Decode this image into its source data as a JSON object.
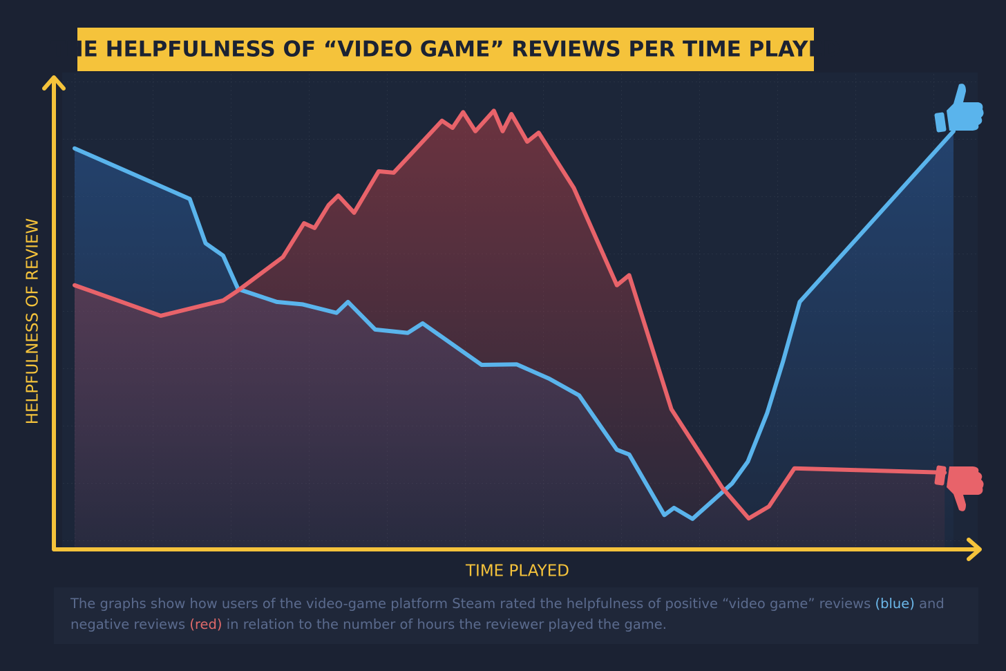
{
  "chart_data": {
    "type": "line",
    "title": "THE HELPFULNESS OF “VIDEO GAME” REVIEWS PER TIME PLAYED",
    "x_label": "TIME PLAYED",
    "y_label": "HELPFULNESS OF REVIEW",
    "xlim": [
      0,
      100
    ],
    "ylim": [
      0,
      100
    ],
    "series": [
      {
        "color": "#5ab4ec",
        "x": [
          0,
          13.1,
          14.9,
          16.9,
          18.6,
          23.0,
          25.9,
          29.8,
          31.1,
          34.2,
          37.9,
          39.6,
          46.3,
          50.3,
          54.0,
          57.4,
          61.7,
          63.1,
          67.1,
          68.2,
          70.3,
          74.8,
          76.6,
          78.8,
          80.6,
          82.5,
          100
        ],
        "values": [
          84.1,
          73.5,
          64.2,
          61.6,
          54.6,
          51.9,
          51.4,
          49.6,
          51.9,
          46.1,
          45.4,
          47.4,
          38.7,
          38.8,
          35.8,
          32.3,
          20.9,
          19.9,
          7.2,
          8.7,
          6.4,
          13.8,
          18.4,
          28.6,
          39.4,
          51.9,
          87.7
        ]
      },
      {
        "color": "#e8636a",
        "x": [
          0,
          9.8,
          16.9,
          18.6,
          23.7,
          26.1,
          27.3,
          28.9,
          30.0,
          31.8,
          34.6,
          36.3,
          41.8,
          43.0,
          44.2,
          45.6,
          47.7,
          48.7,
          49.7,
          51.5,
          52.8,
          56.8,
          61.7,
          63.1,
          67.9,
          73.7,
          76.7,
          79.0,
          81.9,
          99.0
        ],
        "values": [
          55.4,
          49.0,
          52.2,
          54.3,
          61.3,
          68.4,
          67.4,
          72.2,
          74.2,
          70.6,
          79.3,
          79.0,
          89.9,
          88.4,
          91.7,
          87.7,
          92.0,
          87.7,
          91.3,
          85.5,
          87.4,
          75.8,
          55.4,
          57.5,
          29.4,
          12.9,
          6.5,
          9.0,
          17.0,
          16.1
        ]
      }
    ],
    "caption": [
      "The graphs show how users of the video-game platform Steam rated the helpfulness of positive “video game” reviews ",
      "(blue)",
      " and negative reviews ",
      "(red)",
      " in relation to the number of hours the reviewer played the game."
    ]
  }
}
